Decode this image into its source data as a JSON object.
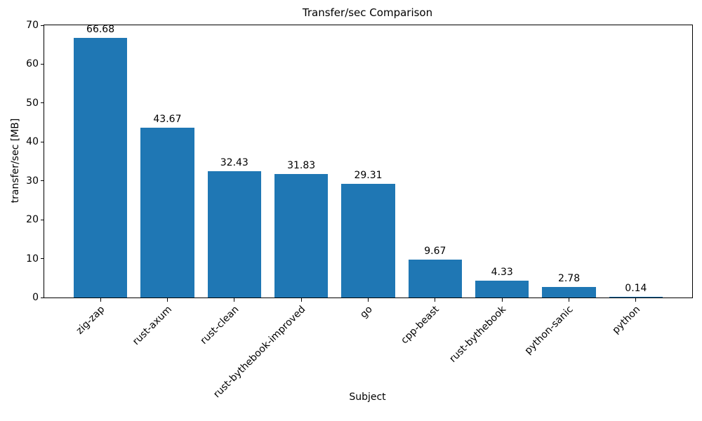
{
  "chart_data": {
    "type": "bar",
    "title": "Transfer/sec Comparison",
    "xlabel": "Subject",
    "ylabel": "transfer/sec [MB]",
    "categories": [
      "zig-zap",
      "rust-axum",
      "rust-clean",
      "rust-bythebook-improved",
      "go",
      "cpp-beast",
      "rust-bythebook",
      "python-sanic",
      "python"
    ],
    "values": [
      66.68,
      43.67,
      32.43,
      31.83,
      29.31,
      9.67,
      4.33,
      2.78,
      0.14
    ],
    "value_labels": [
      "66.68",
      "43.67",
      "32.43",
      "31.83",
      "29.31",
      "9.67",
      "4.33",
      "2.78",
      "0.14"
    ],
    "yticks": [
      0,
      10,
      20,
      30,
      40,
      50,
      60,
      70
    ],
    "ylim": [
      0,
      70
    ],
    "bar_color": "#1f77b4",
    "grid": false,
    "legend": null,
    "x_tick_rotation": 45
  }
}
